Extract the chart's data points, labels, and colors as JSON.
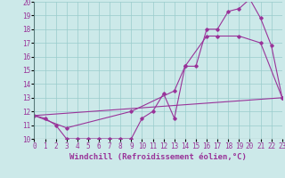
{
  "xlabel": "Windchill (Refroidissement éolien,°C)",
  "bg_color": "#cce9e9",
  "line_color": "#993399",
  "grid_color": "#99cccc",
  "xmin": 0,
  "xmax": 23,
  "ymin": 10,
  "ymax": 20,
  "line1_x": [
    0,
    1,
    2,
    3,
    4,
    5,
    6,
    7,
    8,
    9,
    10,
    11,
    12,
    13,
    14,
    15,
    16,
    17,
    18,
    19,
    20,
    21,
    22,
    23
  ],
  "line1_y": [
    11.7,
    11.5,
    11.0,
    10.0,
    10.0,
    10.0,
    10.0,
    10.0,
    10.0,
    10.0,
    11.5,
    12.0,
    13.3,
    11.5,
    15.3,
    15.3,
    18.0,
    18.0,
    19.3,
    19.5,
    20.2,
    18.8,
    16.8,
    13.0
  ],
  "line2_x": [
    0,
    3,
    9,
    13,
    14,
    16,
    17,
    19,
    21,
    23
  ],
  "line2_y": [
    11.7,
    10.8,
    12.0,
    13.5,
    15.3,
    17.5,
    17.5,
    17.5,
    17.0,
    13.0
  ],
  "line3_x": [
    0,
    23
  ],
  "line3_y": [
    11.7,
    13.0
  ],
  "font_size_label": 6.5,
  "font_size_tick": 5.5
}
